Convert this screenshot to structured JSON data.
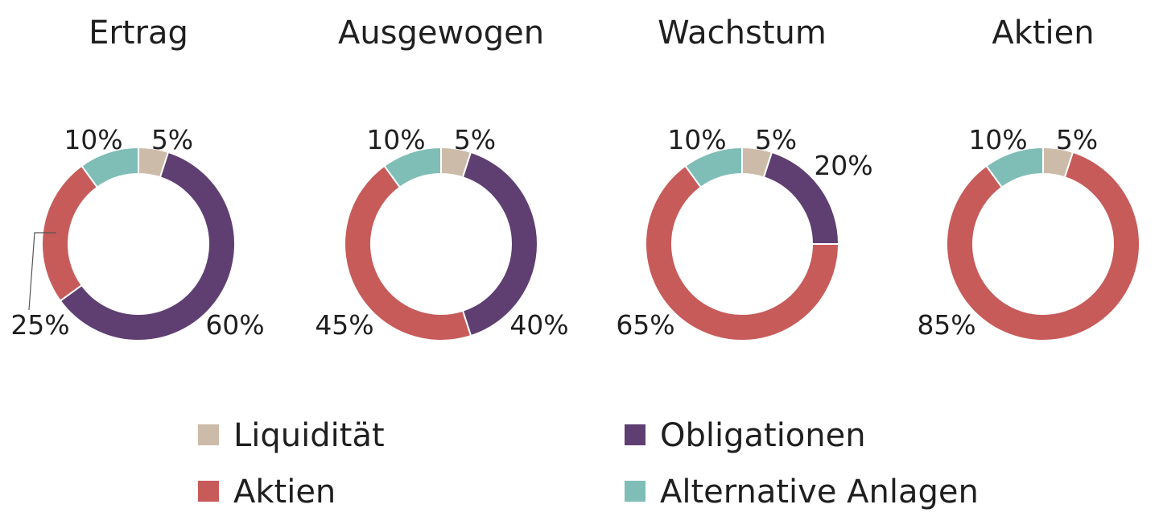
{
  "chart_data": [
    {
      "type": "pie",
      "title": "Ertrag",
      "categories": [
        "Liquidität",
        "Obligationen",
        "Aktien",
        "Alternative Anlagen"
      ],
      "values": [
        5,
        60,
        25,
        10
      ],
      "labels": [
        "5%",
        "60%",
        "25%",
        "10%"
      ]
    },
    {
      "type": "pie",
      "title": "Ausgewogen",
      "categories": [
        "Liquidität",
        "Obligationen",
        "Aktien",
        "Alternative Anlagen"
      ],
      "values": [
        5,
        40,
        45,
        10
      ],
      "labels": [
        "5%",
        "40%",
        "45%",
        "10%"
      ]
    },
    {
      "type": "pie",
      "title": "Wachstum",
      "categories": [
        "Liquidität",
        "Obligationen",
        "Aktien",
        "Alternative Anlagen"
      ],
      "values": [
        5,
        20,
        65,
        10
      ],
      "labels": [
        "5%",
        "20%",
        "65%",
        "10%"
      ]
    },
    {
      "type": "pie",
      "title": "Aktien",
      "categories": [
        "Liquidität",
        "Obligationen",
        "Aktien",
        "Alternative Anlagen"
      ],
      "values": [
        5,
        0,
        85,
        10
      ],
      "labels": [
        "5%",
        "",
        "85%",
        "10%"
      ]
    }
  ],
  "legend": {
    "placement": "bottom",
    "items": [
      {
        "label": "Liquidität",
        "color": "#cdbba9"
      },
      {
        "label": "Obligationen",
        "color": "#5f3f72"
      },
      {
        "label": "Aktien",
        "color": "#c75b5a"
      },
      {
        "label": "Alternative Anlagen",
        "color": "#7fbdb7"
      }
    ]
  },
  "colors": {
    "Liquidität": "#cdbba9",
    "Obligationen": "#5f3f72",
    "Aktien": "#c75b5a",
    "Alternative Anlagen": "#7fbdb7"
  }
}
